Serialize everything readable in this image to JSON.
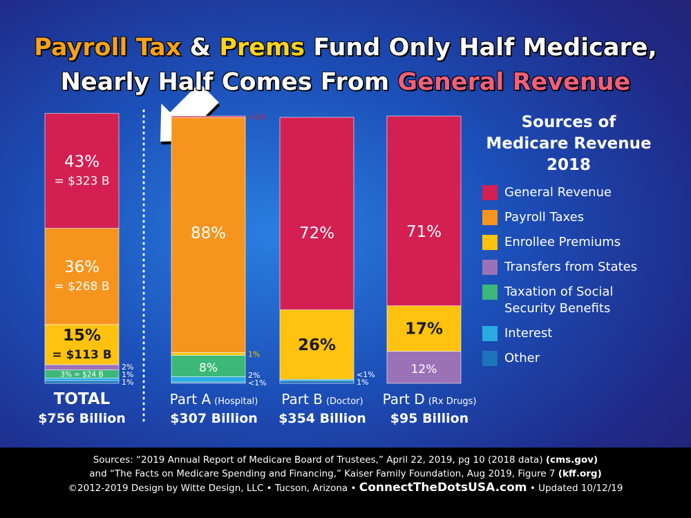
{
  "chart_data": {
    "type": "stacked-bar",
    "title_lines": [
      [
        {
          "text": "Payroll Tax",
          "color": "#f7a21b"
        },
        {
          "text": " & ",
          "color": "#ffffff"
        },
        {
          "text": "Prems",
          "color": "#ffd21f"
        },
        {
          "text": " Fund Only Half Medicare,",
          "color": "#ffffff"
        }
      ],
      [
        {
          "text": "Nearly Half Comes From ",
          "color": "#ffffff"
        },
        {
          "text": "General Revenue",
          "color": "#f0607a"
        }
      ]
    ],
    "legend_title": "Sources of Medicare Revenue 2018",
    "categories": [
      "TOTAL",
      "Part A",
      "Part B",
      "Part D"
    ],
    "category_notes": [
      null,
      "(Hospital)",
      "(Doctor)",
      "(Rx Drugs)"
    ],
    "category_totals": [
      "$756 Billion",
      "$307 Billion",
      "$354 Billion",
      "$95 Billion"
    ],
    "series": [
      {
        "name": "General Revenue",
        "color": "#d41f52",
        "values": [
          43,
          0.5,
          72,
          71
        ],
        "value_labels": [
          "43%",
          "<1%",
          "72%",
          "71%"
        ],
        "amount_labels": [
          "= $323 B",
          null,
          null,
          null
        ]
      },
      {
        "name": "Payroll Taxes",
        "color": "#f7941d",
        "values": [
          36,
          88,
          null,
          null
        ],
        "value_labels": [
          "36%",
          "88%",
          null,
          null
        ],
        "amount_labels": [
          "= $268 B",
          null,
          null,
          null
        ]
      },
      {
        "name": "Enrollee Premiums",
        "color": "#ffc20e",
        "values": [
          15,
          1,
          26,
          17
        ],
        "value_labels": [
          "15%",
          "1%",
          "26%",
          "17%"
        ],
        "amount_labels": [
          "= $113 B",
          null,
          null,
          null
        ]
      },
      {
        "name": "Transfers from States",
        "color": "#9b72b6",
        "values": [
          2,
          null,
          null,
          12
        ],
        "value_labels": [
          "2%",
          null,
          null,
          "12%"
        ],
        "amount_labels": [
          null,
          null,
          null,
          null
        ]
      },
      {
        "name": "Taxation of Social Security Benefits",
        "color": "#3cb878",
        "values": [
          3,
          8,
          null,
          null
        ],
        "value_labels": [
          "3%",
          "8%",
          null,
          null
        ],
        "amount_labels": [
          "= $24 B",
          null,
          null,
          null
        ]
      },
      {
        "name": "Interest",
        "color": "#29abe2",
        "values": [
          1,
          2,
          0.5,
          null
        ],
        "value_labels": [
          "1%",
          "2%",
          "<1%",
          null
        ],
        "amount_labels": [
          null,
          null,
          null,
          null
        ]
      },
      {
        "name": "Other",
        "color": "#1b75bc",
        "values": [
          1,
          0.5,
          1,
          null
        ],
        "value_labels": [
          "1%",
          "<1%",
          "1%",
          null
        ],
        "amount_labels": [
          null,
          null,
          null,
          null
        ]
      }
    ],
    "sources": [
      [
        {
          "text": "Sources: “2019 Annual Report of Medicare Board of Trustees,” April 22, 2019, pg 10 (2018 data) ",
          "bold": false
        },
        {
          "text": "(cms.gov)",
          "bold": true
        }
      ],
      [
        {
          "text": "and “The Facts on Medicare Spending and Financing,” Kaiser Family Foundation, Aug 2019, Figure 7 ",
          "bold": false
        },
        {
          "text": "(kff.org)",
          "bold": true
        }
      ],
      [
        {
          "text": "©2012-2019 Design by Witte Design, LLC • Tucson, Arizona • ",
          "bold": false
        },
        {
          "text": "ConnectTheDotsUSA.com",
          "bold": true
        },
        {
          "text": " • Updated 10/12/19",
          "bold": false
        }
      ]
    ]
  }
}
